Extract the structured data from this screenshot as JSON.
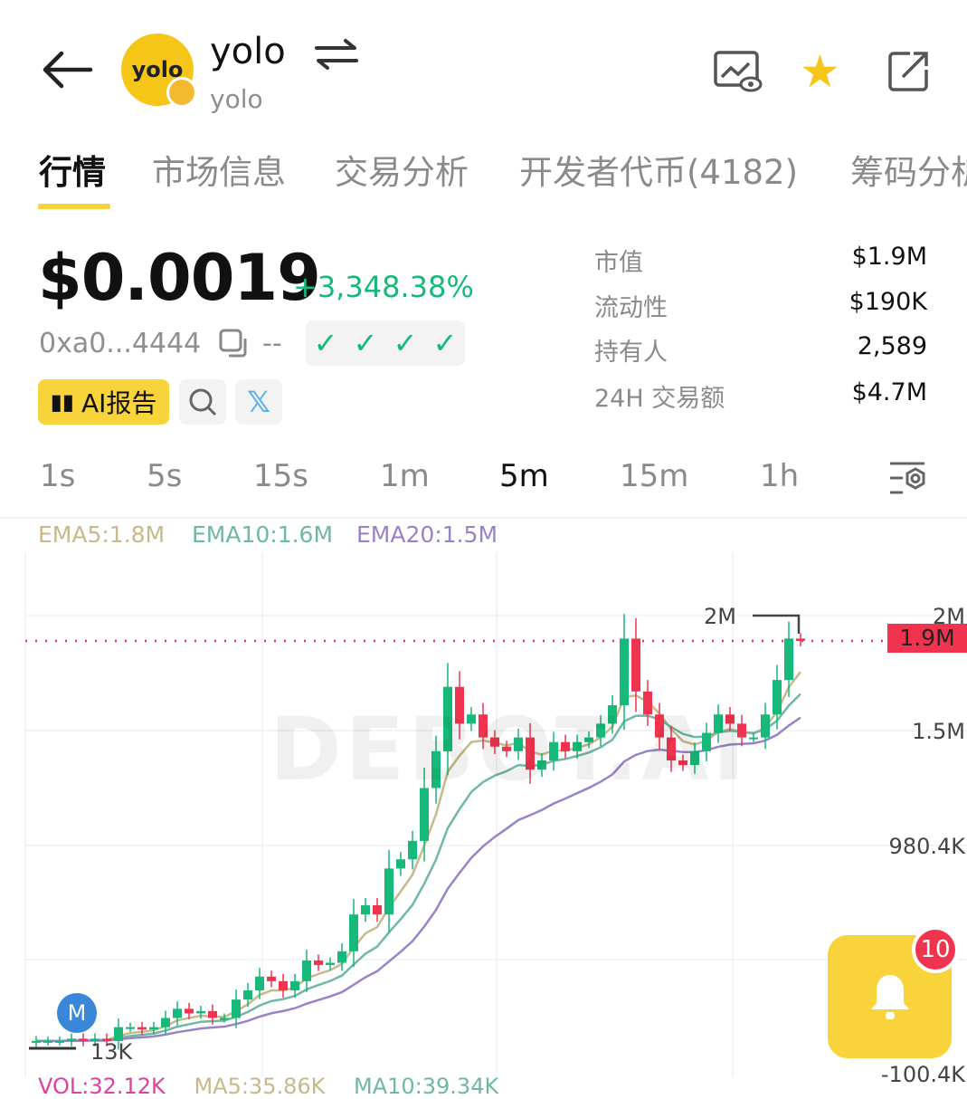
{
  "header": {
    "title": "yolo",
    "subtitle": "yolo",
    "logo_text": "yolo"
  },
  "tabs": [
    {
      "label": "行情",
      "active": true
    },
    {
      "label": "市场信息"
    },
    {
      "label": "交易分析"
    },
    {
      "label": "开发者代币(4182)"
    },
    {
      "label": "筹码分析"
    }
  ],
  "price": {
    "value": "$0.0019",
    "change": "+3,348.38%",
    "address": "0xa0...4444",
    "dash": "--",
    "checks": 4
  },
  "actions": {
    "ai_report": "AI报告"
  },
  "stats": [
    {
      "label": "市值",
      "value": "$1.9M"
    },
    {
      "label": "流动性",
      "value": "$190K"
    },
    {
      "label": "持有人",
      "value": "2,589"
    },
    {
      "label": "24H 交易额",
      "value": "$4.7M"
    }
  ],
  "timeframes": [
    {
      "label": "1s"
    },
    {
      "label": "5s"
    },
    {
      "label": "15s"
    },
    {
      "label": "1m"
    },
    {
      "label": "5m",
      "active": true
    },
    {
      "label": "15m"
    },
    {
      "label": "1h"
    }
  ],
  "colors": {
    "up": "#16b979",
    "down": "#f0344f",
    "accent": "#f8d33a",
    "ema5": "#c8b88a",
    "ema10": "#6fb8a3",
    "ema20": "#9a82c8"
  },
  "chart_data": {
    "type": "candlestick",
    "indicators": [
      {
        "name": "EMA5",
        "label": "EMA5:1.8M"
      },
      {
        "name": "EMA10",
        "label": "EMA10:1.6M"
      },
      {
        "name": "EMA20",
        "label": "EMA20:1.5M"
      }
    ],
    "y_ticks": [
      "2M",
      "1.5M",
      "980.4K",
      "-100.4K"
    ],
    "current_price_label": "1.9M",
    "high_label": "2M",
    "low_label": "13K",
    "marker": "M",
    "watermark": "DEBOT.AI",
    "volume_labels": [
      "VOL:32.12K",
      "MA5:35.86K",
      "MA10:39.34K"
    ],
    "closes_m": [
      0.15,
      0.15,
      0.15,
      0.16,
      0.15,
      0.16,
      0.15,
      0.21,
      0.21,
      0.2,
      0.21,
      0.25,
      0.29,
      0.27,
      0.28,
      0.25,
      0.25,
      0.33,
      0.37,
      0.43,
      0.41,
      0.37,
      0.41,
      0.5,
      0.48,
      0.49,
      0.54,
      0.7,
      0.74,
      0.7,
      0.9,
      0.94,
      1.02,
      1.25,
      1.41,
      1.69,
      1.53,
      1.57,
      1.47,
      1.43,
      1.41,
      1.47,
      1.33,
      1.37,
      1.45,
      1.41,
      1.45,
      1.47,
      1.53,
      1.61,
      1.9,
      1.67,
      1.57,
      1.47,
      1.37,
      1.35,
      1.41,
      1.49,
      1.57,
      1.53,
      1.47,
      1.47,
      1.57,
      1.72,
      1.9,
      1.89
    ]
  },
  "notifications": {
    "count": "10"
  }
}
